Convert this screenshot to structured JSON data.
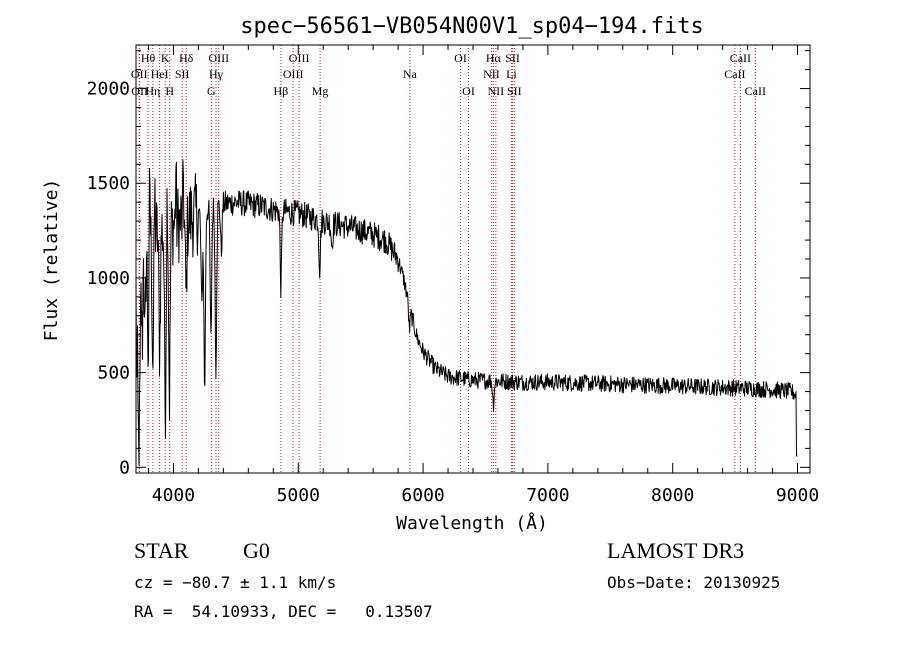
{
  "chart_data": {
    "type": "line",
    "title": "spec−56561−VB054N00V1_sp04−194.fits",
    "xlabel": "Wavelength (Å)",
    "ylabel": "Flux (relative)",
    "xlim": [
      3700,
      9100
    ],
    "ylim": [
      -30,
      2230
    ],
    "xticks": [
      4000,
      5000,
      6000,
      7000,
      8000,
      9000
    ],
    "yticks": [
      0,
      500,
      1000,
      1500,
      2000
    ],
    "continuum": [
      [
        3700,
        1150
      ],
      [
        3800,
        1200
      ],
      [
        3900,
        1250
      ],
      [
        4000,
        1280
      ],
      [
        4100,
        1310
      ],
      [
        4200,
        1340
      ],
      [
        4300,
        1370
      ],
      [
        4400,
        1390
      ],
      [
        4500,
        1400
      ],
      [
        4600,
        1390
      ],
      [
        4700,
        1380
      ],
      [
        4800,
        1360
      ],
      [
        4900,
        1350
      ],
      [
        5000,
        1340
      ],
      [
        5100,
        1320
      ],
      [
        5200,
        1300
      ],
      [
        5300,
        1285
      ],
      [
        5400,
        1270
      ],
      [
        5500,
        1250
      ],
      [
        5600,
        1230
      ],
      [
        5700,
        1200
      ],
      [
        5800,
        1100
      ],
      [
        5850,
        980
      ],
      [
        5900,
        820
      ],
      [
        5950,
        690
      ],
      [
        6000,
        610
      ],
      [
        6100,
        520
      ],
      [
        6200,
        480
      ],
      [
        6300,
        470
      ],
      [
        6400,
        460
      ],
      [
        6600,
        455
      ],
      [
        6800,
        450
      ],
      [
        7000,
        450
      ],
      [
        7500,
        440
      ],
      [
        8000,
        430
      ],
      [
        8500,
        420
      ],
      [
        8800,
        410
      ],
      [
        8950,
        400
      ],
      [
        9000,
        380
      ]
    ],
    "absorption_features": [
      {
        "x": 3710,
        "depth": 900
      },
      {
        "x": 3720,
        "depth": 650
      },
      {
        "x": 3730,
        "depth": 700
      },
      {
        "x": 3750,
        "depth": 500
      },
      {
        "x": 3770,
        "depth": 550
      },
      {
        "x": 3798,
        "depth": 600
      },
      {
        "x": 3835,
        "depth": 650
      },
      {
        "x": 3889,
        "depth": 600
      },
      {
        "x": 3934,
        "depth": 950
      },
      {
        "x": 3968,
        "depth": 900
      },
      {
        "x": 4101,
        "depth": 400
      },
      {
        "x": 4227,
        "depth": 500
      },
      {
        "x": 4250,
        "depth": 950
      },
      {
        "x": 4300,
        "depth": 700
      },
      {
        "x": 4340,
        "depth": 850
      },
      {
        "x": 4383,
        "depth": 250
      },
      {
        "x": 4861,
        "depth": 400
      },
      {
        "x": 5172,
        "depth": 250
      },
      {
        "x": 5270,
        "depth": 120
      },
      {
        "x": 5890,
        "depth": 120
      },
      {
        "x": 6563,
        "depth": 120
      }
    ],
    "emission_spikes": [
      {
        "x": 3712,
        "height": 500
      },
      {
        "x": 3760,
        "height": 300
      },
      {
        "x": 3810,
        "height": 450
      },
      {
        "x": 3850,
        "height": 250
      },
      {
        "x": 3950,
        "height": 250
      },
      {
        "x": 4020,
        "height": 300
      },
      {
        "x": 4080,
        "height": 250
      }
    ],
    "noise": [
      {
        "from": 3700,
        "to": 4200,
        "amplitude": 220
      },
      {
        "from": 4200,
        "to": 5800,
        "amplitude": 70
      },
      {
        "from": 5800,
        "to": 9000,
        "amplitude": 45
      }
    ],
    "lines": [
      {
        "x": 3726,
        "label": "OII",
        "row": 2
      },
      {
        "x": 3729,
        "label": "OII",
        "row": 3
      },
      {
        "x": 3797,
        "label": "Hθ",
        "row": 1
      },
      {
        "x": 3835,
        "label": "Hη",
        "row": 3
      },
      {
        "x": 3889,
        "label": "HeI",
        "row": 2
      },
      {
        "x": 3934,
        "label": "K",
        "row": 1
      },
      {
        "x": 3970,
        "label": "H",
        "row": 3
      },
      {
        "x": 4070,
        "label": "SII",
        "row": 2
      },
      {
        "x": 4102,
        "label": "Hδ",
        "row": 1
      },
      {
        "x": 4304,
        "label": "G",
        "row": 3
      },
      {
        "x": 4341,
        "label": "Hγ",
        "row": 2
      },
      {
        "x": 4363,
        "label": "OIII",
        "row": 1
      },
      {
        "x": 4861,
        "label": "Hβ",
        "row": 3
      },
      {
        "x": 4959,
        "label": "OIII",
        "row": 2
      },
      {
        "x": 5007,
        "label": "OIII",
        "row": 1
      },
      {
        "x": 5175,
        "label": "Mg",
        "row": 3
      },
      {
        "x": 5894,
        "label": "Na",
        "row": 2
      },
      {
        "x": 6300,
        "label": "OI",
        "row": 1
      },
      {
        "x": 6364,
        "label": "OI",
        "row": 3
      },
      {
        "x": 6548,
        "label": "NII",
        "row": 2
      },
      {
        "x": 6563,
        "label": "Hα",
        "row": 1
      },
      {
        "x": 6583,
        "label": "NII",
        "row": 3
      },
      {
        "x": 6708,
        "label": "Li",
        "row": 2
      },
      {
        "x": 6717,
        "label": "SII",
        "row": 1
      },
      {
        "x": 6731,
        "label": "SII",
        "row": 3
      },
      {
        "x": 8498,
        "label": "CaII",
        "row": 2
      },
      {
        "x": 8542,
        "label": "CaII",
        "row": 1
      },
      {
        "x": 8662,
        "label": "CaII",
        "row": 3
      }
    ]
  },
  "info": {
    "object_class": "STAR",
    "subclass": "G0",
    "survey": "LAMOST DR3",
    "redshift_text": "cz = −80.7 ± 1.1 km/s",
    "obs_date_text": "Obs−Date: 20130925",
    "coords_text": "RA =  54.10933, DEC =   0.13507"
  },
  "colors": {
    "spectrum": "#000000",
    "line_markers": "#b02020",
    "axes": "#000000"
  }
}
